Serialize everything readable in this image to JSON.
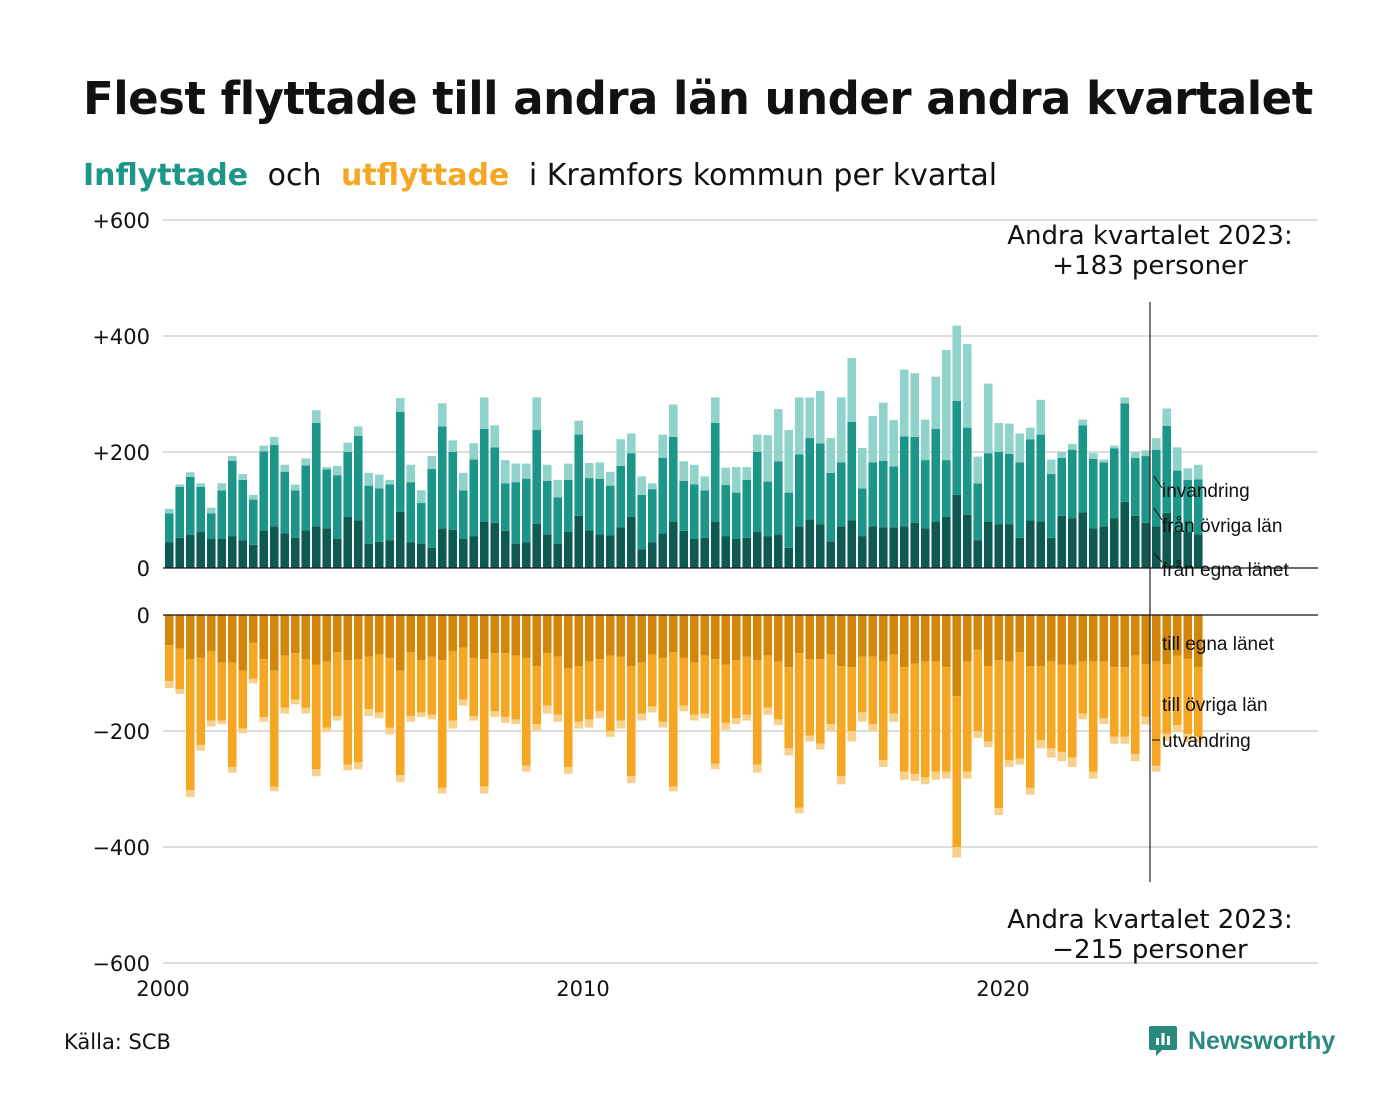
{
  "title": "Flest flyttade till andra län under andra kvartalet",
  "subtitle": {
    "part1": "Inflyttade",
    "part2": "och",
    "part3": "utflyttade",
    "part4": "i Kramfors kommun per kvartal"
  },
  "source": "Källa: SCB",
  "brand": "Newsworthy",
  "colors": {
    "in_own": "#0e5a52",
    "in_other": "#1c9688",
    "in_abroad": "#8fd3ca",
    "out_own": "#d4860b",
    "out_other": "#f5a623",
    "out_abroad": "#f8d08a",
    "grid": "#dddddd",
    "brand": "#2b8a80"
  },
  "chart_data": {
    "type": "bar",
    "stacked": true,
    "ylim": [
      -600,
      600
    ],
    "xlim": [
      2000,
      2027.5
    ],
    "yticks_top": [
      "+600",
      "+400",
      "+200",
      "0"
    ],
    "yticks_bottom": [
      "0",
      "−200",
      "−400",
      "−600"
    ],
    "xticks": [
      "2000",
      "2010",
      "2020"
    ],
    "annotation_top": [
      "Andra kvartalet 2023:",
      "+183 personer"
    ],
    "annotation_bottom": [
      "Andra kvartalet 2023:",
      "−215 personer"
    ],
    "series_in": [
      {
        "name": "från egna länet",
        "values": [
          44,
          52,
          57,
          62,
          50,
          50,
          55,
          48,
          40,
          65,
          72,
          60,
          52,
          65,
          72,
          68,
          50,
          88,
          82,
          42,
          45,
          48,
          97,
          44,
          42,
          35,
          68,
          66,
          50,
          55,
          80,
          78,
          64,
          42,
          44,
          76,
          58,
          42,
          62,
          90,
          65,
          58,
          56,
          70,
          88,
          32,
          44,
          60,
          80,
          64,
          50,
          52,
          80,
          55,
          50,
          52,
          62,
          55,
          58,
          35,
          72,
          84,
          75,
          46,
          72,
          82,
          55,
          72,
          70,
          70,
          72,
          78,
          68,
          80,
          88,
          126,
          92,
          48,
          80,
          75,
          75,
          52,
          82,
          80,
          52,
          90,
          86,
          96,
          68,
          72,
          86,
          114,
          90,
          78,
          72,
          95,
          64,
          62,
          58
        ]
      },
      {
        "name": "från övriga län",
        "values": [
          50,
          88,
          100,
          78,
          44,
          84,
          130,
          104,
          78,
          136,
          140,
          106,
          82,
          112,
          178,
          102,
          110,
          112,
          146,
          100,
          92,
          96,
          172,
          104,
          70,
          136,
          176,
          134,
          84,
          132,
          160,
          130,
          82,
          106,
          110,
          162,
          92,
          80,
          90,
          140,
          90,
          96,
          86,
          106,
          110,
          94,
          92,
          130,
          146,
          86,
          94,
          82,
          170,
          88,
          80,
          100,
          138,
          94,
          126,
          95,
          124,
          140,
          140,
          118,
          110,
          170,
          82,
          110,
          115,
          105,
          155,
          148,
          118,
          160,
          98,
          162,
          150,
          98,
          118,
          125,
          122,
          130,
          140,
          150,
          110,
          100,
          118,
          150,
          120,
          110,
          120,
          170,
          100,
          115,
          132,
          150,
          104,
          90,
          95
        ]
      },
      {
        "name": "invandring",
        "values": [
          8,
          4,
          8,
          6,
          10,
          12,
          8,
          10,
          8,
          10,
          14,
          12,
          10,
          12,
          22,
          4,
          16,
          16,
          16,
          22,
          24,
          8,
          24,
          30,
          22,
          22,
          40,
          20,
          30,
          28,
          54,
          38,
          40,
          32,
          26,
          56,
          28,
          30,
          28,
          24,
          26,
          28,
          24,
          46,
          34,
          32,
          10,
          40,
          56,
          34,
          34,
          24,
          44,
          30,
          44,
          22,
          30,
          80,
          90,
          108,
          98,
          70,
          90,
          60,
          112,
          110,
          70,
          80,
          100,
          80,
          115,
          110,
          70,
          90,
          190,
          130,
          144,
          46,
          120,
          50,
          52,
          50,
          20,
          60,
          25,
          10,
          10,
          10,
          10,
          5,
          5,
          10,
          10,
          10,
          20,
          30,
          40,
          20,
          25
        ]
      }
    ],
    "series_out": [
      {
        "name": "till egna länet",
        "values": [
          52,
          58,
          76,
          74,
          62,
          82,
          82,
          96,
          48,
          76,
          96,
          70,
          66,
          76,
          86,
          80,
          64,
          78,
          76,
          72,
          68,
          74,
          96,
          64,
          78,
          72,
          78,
          62,
          56,
          74,
          76,
          66,
          66,
          70,
          74,
          88,
          66,
          72,
          92,
          88,
          80,
          76,
          70,
          72,
          88,
          82,
          68,
          74,
          64,
          74,
          82,
          70,
          76,
          86,
          78,
          72,
          78,
          70,
          80,
          90,
          66,
          76,
          76,
          68,
          88,
          90,
          72,
          72,
          80,
          68,
          90,
          84,
          80,
          80,
          90,
          140,
          80,
          60,
          88,
          78,
          80,
          64,
          88,
          88,
          80,
          86,
          86,
          80,
          80,
          80,
          90,
          90,
          70,
          85,
          80,
          85,
          70,
          75,
          90
        ]
      },
      {
        "name": "till övriga län",
        "values": [
          62,
          70,
          226,
          150,
          120,
          100,
          180,
          100,
          62,
          100,
          200,
          90,
          80,
          84,
          180,
          114,
          110,
          180,
          178,
          90,
          100,
          120,
          180,
          110,
          90,
          100,
          220,
          120,
          90,
          100,
          220,
          100,
          110,
          110,
          186,
          100,
          90,
          100,
          170,
          96,
          100,
          90,
          130,
          110,
          190,
          88,
          90,
          110,
          232,
          82,
          90,
          100,
          180,
          100,
          100,
          100,
          180,
          90,
          100,
          140,
          266,
          132,
          146,
          120,
          190,
          110,
          96,
          116,
          170,
          102,
          180,
          190,
          200,
          190,
          180,
          260,
          190,
          140,
          130,
          255,
          170,
          184,
          210,
          128,
          150,
          150,
          160,
          90,
          190,
          98,
          120,
          120,
          170,
          90,
          180,
          120,
          120,
          130,
          120
        ]
      },
      {
        "name": "utvandring",
        "values": [
          12,
          8,
          12,
          10,
          10,
          6,
          10,
          8,
          8,
          8,
          8,
          10,
          8,
          10,
          12,
          8,
          8,
          10,
          12,
          12,
          10,
          12,
          12,
          10,
          8,
          8,
          10,
          14,
          10,
          8,
          12,
          10,
          10,
          8,
          10,
          12,
          14,
          12,
          12,
          12,
          14,
          12,
          10,
          14,
          12,
          12,
          10,
          10,
          8,
          10,
          10,
          8,
          10,
          12,
          10,
          10,
          14,
          12,
          10,
          12,
          10,
          10,
          10,
          12,
          14,
          18,
          16,
          12,
          12,
          14,
          14,
          12,
          12,
          14,
          12,
          18,
          12,
          12,
          10,
          12,
          12,
          10,
          12,
          14,
          16,
          16,
          16,
          10,
          12,
          10,
          12,
          12,
          12,
          14,
          10,
          12,
          12,
          14,
          10
        ]
      }
    ],
    "labels_in": [
      "invandring",
      "från övriga län",
      "från egna länet"
    ],
    "labels_out": [
      "till egna länet",
      "till övriga län",
      "utvandring"
    ]
  }
}
